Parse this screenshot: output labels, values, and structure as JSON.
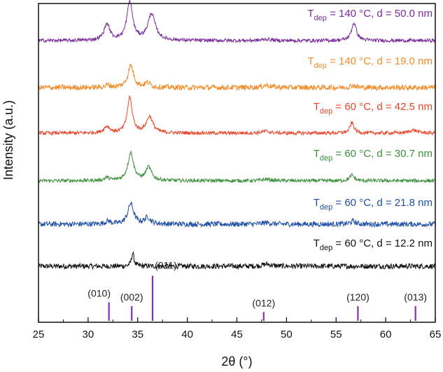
{
  "chart_data": {
    "type": "line",
    "xlabel": "2θ (°)",
    "ylabel": "Intensity (a.u.)",
    "xlim": [
      25,
      65
    ],
    "xticks": [
      25,
      30,
      35,
      40,
      45,
      50,
      55,
      60,
      65
    ],
    "grid": false,
    "series": [
      {
        "name": "T_dep = 60 °C, d = 12.2 nm",
        "label_main": "T",
        "label_sub": "dep",
        "label_rest": " = 60 °C, d = 12.2 nm",
        "color": "#111111",
        "offset": 0,
        "noise": 0.09,
        "peaks": [
          [
            34.5,
            0.15,
            0.45
          ],
          [
            48.0,
            0.5,
            0.07
          ]
        ]
      },
      {
        "name": "T_dep = 60 °C, d = 21.8 nm",
        "label_main": "T",
        "label_sub": "dep",
        "label_rest": " = 60 °C, d = 21.8 nm",
        "color": "#1f4fa6",
        "offset": 1,
        "noise": 0.09,
        "peaks": [
          [
            34.3,
            0.35,
            0.7
          ],
          [
            36.0,
            0.35,
            0.22
          ],
          [
            32.0,
            0.3,
            0.1
          ],
          [
            48.0,
            0.5,
            0.05
          ],
          [
            56.7,
            0.3,
            0.1
          ]
        ]
      },
      {
        "name": "T_dep = 60 °C, d = 30.7 nm",
        "label_main": "T",
        "label_sub": "dep",
        "label_rest": " = 60 °C, d = 30.7 nm",
        "color": "#3a8f3a",
        "offset": 2,
        "noise": 0.06,
        "peaks": [
          [
            34.3,
            0.35,
            0.95
          ],
          [
            36.1,
            0.35,
            0.45
          ],
          [
            31.9,
            0.3,
            0.1
          ],
          [
            48.0,
            0.5,
            0.05
          ],
          [
            56.6,
            0.25,
            0.2
          ]
        ]
      },
      {
        "name": "T_dep = 60 °C, d = 42.5 nm",
        "label_main": "T",
        "label_sub": "dep",
        "label_rest": " = 60 °C, d = 42.5 nm",
        "color": "#e8462a",
        "offset": 3,
        "noise": 0.06,
        "peaks": [
          [
            34.2,
            0.3,
            1.2
          ],
          [
            36.2,
            0.4,
            0.55
          ],
          [
            31.9,
            0.35,
            0.22
          ],
          [
            47.9,
            0.5,
            0.06
          ],
          [
            56.6,
            0.25,
            0.35
          ],
          [
            62.8,
            0.5,
            0.1
          ]
        ]
      },
      {
        "name": "T_dep = 140 °C, d = 19.0 nm",
        "label_main": "T",
        "label_sub": "dep",
        "label_rest": " = 140 °C, d = 19.0 nm",
        "color": "#f28c28",
        "offset": 4,
        "noise": 0.09,
        "peaks": [
          [
            34.3,
            0.35,
            0.75
          ],
          [
            36.0,
            0.35,
            0.15
          ],
          [
            32.0,
            0.3,
            0.08
          ],
          [
            48.0,
            0.5,
            0.08
          ],
          [
            56.7,
            0.3,
            0.08
          ]
        ]
      },
      {
        "name": "T_dep = 140 °C, d = 50.0 nm",
        "label_main": "T",
        "label_sub": "dep",
        "label_rest": " = 140 °C, d = 50.0 nm",
        "color": "#7a2a9a",
        "offset": 5,
        "noise": 0.06,
        "peaks": [
          [
            34.2,
            0.35,
            1.3
          ],
          [
            36.4,
            0.45,
            0.9
          ],
          [
            31.9,
            0.35,
            0.55
          ],
          [
            56.8,
            0.3,
            0.6
          ],
          [
            48.0,
            0.5,
            0.05
          ]
        ]
      }
    ],
    "reference_lines": [
      {
        "position": 32.1,
        "label": "(010)",
        "height": 0.38
      },
      {
        "position": 34.4,
        "label": "(002)",
        "height": 0.3
      },
      {
        "position": 36.5,
        "label": "(011)",
        "height": 0.92
      },
      {
        "position": 47.7,
        "label": "(012)",
        "height": 0.18
      },
      {
        "position": 57.2,
        "label": "(120)",
        "height": 0.3
      },
      {
        "position": 63.0,
        "label": "(013)",
        "height": 0.3
      }
    ],
    "reference_color": "#8a2fb0"
  }
}
